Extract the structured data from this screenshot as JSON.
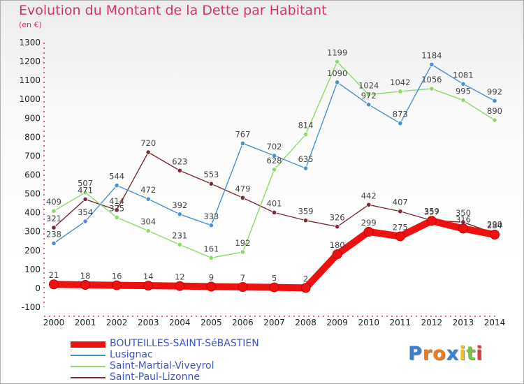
{
  "chart_data": {
    "type": "line",
    "title": "Evolution du Montant de la Dette par Habitant",
    "subtitle": "(en €)",
    "x": [
      2000,
      2001,
      2002,
      2003,
      2004,
      2005,
      2006,
      2007,
      2008,
      2009,
      2010,
      2011,
      2012,
      2013,
      2014
    ],
    "x_ticks": [
      "2000",
      "2001",
      "2002",
      "2003",
      "2004",
      "2005",
      "2006",
      "2007",
      "2008",
      "2009",
      "2010",
      "2011",
      "2012",
      "2013",
      "2014"
    ],
    "ylim": [
      -100,
      1300
    ],
    "y_ticks": [
      -100,
      0,
      100,
      200,
      300,
      400,
      500,
      600,
      700,
      800,
      900,
      1000,
      1100,
      1200,
      1300
    ],
    "grid": false,
    "legend_position": "bottom-left",
    "series": [
      {
        "name": "BOUTEILLES-SAINT-SéBASTIEN",
        "color": "#ee1111",
        "values": [
          21,
          18,
          16,
          14,
          12,
          9,
          7,
          5,
          2,
          180,
          299,
          275,
          357,
          316,
          284
        ]
      },
      {
        "name": "Lusignac",
        "color": "#4d90d0",
        "values": [
          238,
          354,
          544,
          472,
          392,
          333,
          767,
          702,
          635,
          1090,
          972,
          873,
          1184,
          1081,
          992
        ]
      },
      {
        "name": "Saint-Martial-Viveyrol",
        "color": "#8fd86a",
        "values": [
          409,
          507,
          375,
          304,
          231,
          161,
          192,
          628,
          814,
          1199,
          1024,
          1042,
          1056,
          995,
          890
        ]
      },
      {
        "name": "Saint-Paul-Lizonne",
        "color": "#7a2a32",
        "values": [
          321,
          471,
          414,
          720,
          623,
          553,
          479,
          401,
          359,
          326,
          442,
          407,
          359,
          350,
          290
        ]
      }
    ]
  },
  "logo": {
    "letters": [
      "P",
      "r",
      "o",
      "x",
      "i",
      "t",
      "i"
    ],
    "colors": [
      "#3b7fd0",
      "#f07a1a",
      "#f07a1a",
      "#3b7fd0",
      "#f0c020",
      "#7cc043",
      "#e23a3a"
    ]
  }
}
